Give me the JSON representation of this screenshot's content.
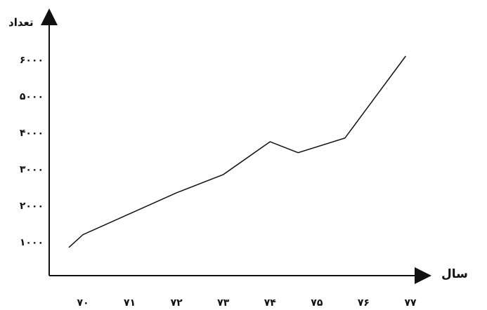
{
  "chart_data": {
    "type": "line",
    "xlabel": "سال",
    "ylabel": "تعداد",
    "categories": [
      "۷۰",
      "۷۱",
      "۷۲",
      "۷۳",
      "۷۴",
      "۷۵",
      "۷۶",
      "۷۷"
    ],
    "x": [
      69.7,
      70.0,
      72.0,
      73.0,
      74.0,
      74.6,
      75.6,
      76.9
    ],
    "values": [
      850,
      1200,
      2350,
      2850,
      3750,
      3450,
      3850,
      6100
    ],
    "yticks": [
      1000,
      2000,
      3000,
      4000,
      5000,
      6000
    ],
    "ytick_labels": [
      "۱۰۰۰",
      "۲۰۰۰",
      "۳۰۰۰",
      "۴۰۰۰",
      "۵۰۰۰",
      "۶۰۰۰"
    ],
    "grid": false,
    "line_color": "#111111",
    "axis_color": "#111111"
  }
}
